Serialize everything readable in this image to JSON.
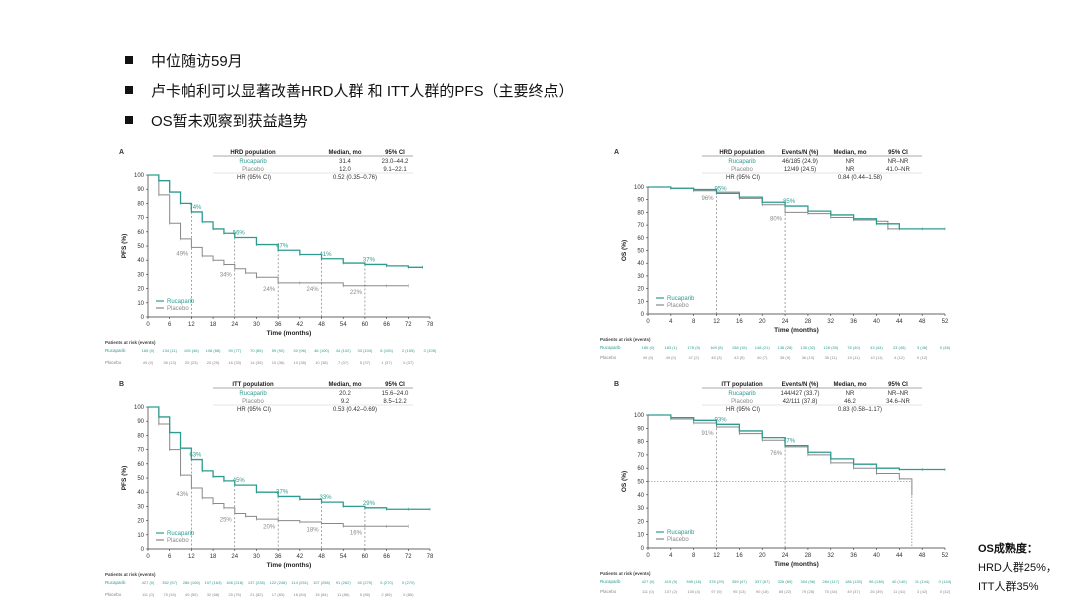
{
  "bullets": [
    "中位随访59月",
    "卢卡帕利可以显著改善HRD人群 和 ITT人群的PFS（主要终点）",
    "OS暂未观察到获益趋势"
  ],
  "maturity": {
    "title": "OS成熟度：",
    "lines": [
      "HRD人群25%，",
      "ITT人群35%"
    ]
  },
  "colors": {
    "treatment": "#2e9b8f",
    "placebo": "#888888"
  },
  "chart_data": [
    {
      "id": "pfs_hrd",
      "panel_label": "A",
      "type": "line",
      "ylabel": "PFS (%)",
      "xlabel": "Time (months)",
      "xlim": [
        0,
        78
      ],
      "ylim": [
        0,
        100
      ],
      "xticks": [
        0,
        6,
        12,
        18,
        24,
        30,
        36,
        42,
        48,
        54,
        60,
        66,
        72,
        78
      ],
      "yticks": [
        0,
        10,
        20,
        30,
        40,
        50,
        60,
        70,
        80,
        90,
        100
      ],
      "table": {
        "headers": [
          "HRD population",
          "Median, mo",
          "95% CI"
        ],
        "rows": [
          [
            "Rucaparib",
            "31.4",
            "23.0–44.2"
          ],
          [
            "Placebo",
            "12.0",
            "9.1–22.1"
          ]
        ],
        "hr_label": "HR (95% CI)",
        "hr_value": "0.52 (0.35–0.76)"
      },
      "legend": [
        "Rucaparib",
        "Placebo"
      ],
      "series": [
        {
          "name": "Rucaparib",
          "x": [
            0,
            3,
            6,
            9,
            12,
            15,
            18,
            21,
            24,
            30,
            36,
            42,
            48,
            54,
            60,
            66,
            72,
            76
          ],
          "y": [
            100,
            96,
            88,
            80,
            74,
            67,
            62,
            59,
            56,
            51,
            47,
            44,
            41,
            38,
            37,
            36,
            35,
            35
          ]
        },
        {
          "name": "Placebo",
          "x": [
            0,
            3,
            6,
            9,
            12,
            15,
            18,
            21,
            24,
            27,
            30,
            36,
            42,
            48,
            54,
            60,
            66,
            72
          ],
          "y": [
            100,
            86,
            66,
            55,
            49,
            43,
            40,
            37,
            34,
            31,
            28,
            24,
            24,
            24,
            22,
            22,
            22,
            22
          ]
        }
      ],
      "annotations": [
        {
          "x": 12,
          "y": 74,
          "text": "74%",
          "series": "Rucaparib"
        },
        {
          "x": 24,
          "y": 56,
          "text": "56%",
          "series": "Rucaparib"
        },
        {
          "x": 36,
          "y": 47,
          "text": "47%",
          "series": "Rucaparib"
        },
        {
          "x": 48,
          "y": 41,
          "text": "41%",
          "series": "Rucaparib"
        },
        {
          "x": 60,
          "y": 37,
          "text": "37%",
          "series": "Rucaparib"
        },
        {
          "x": 12,
          "y": 49,
          "text": "49%",
          "series": "Placebo"
        },
        {
          "x": 24,
          "y": 34,
          "text": "34%",
          "series": "Placebo"
        },
        {
          "x": 36,
          "y": 24,
          "text": "24%",
          "series": "Placebo"
        },
        {
          "x": 48,
          "y": 24,
          "text": "24%",
          "series": "Placebo"
        },
        {
          "x": 60,
          "y": 22,
          "text": "22%",
          "series": "Placebo"
        }
      ],
      "dashed_x": [
        12,
        24,
        36,
        48,
        60
      ],
      "risk_title": "Patients at risk (events)",
      "risk_rows": [
        {
          "name": "Rucaparib",
          "values": [
            "185 (0)",
            "134 (11)",
            "105 (46)",
            "108 (68)",
            "90 (77)",
            "70 (85)",
            "59 (92)",
            "52 (96)",
            "46 (100)",
            "44 (102)",
            "33 (104)",
            "8 (105)",
            "2 (105)",
            "0 (105)"
          ]
        },
        {
          "name": "Placebo",
          "values": [
            "49 (0)",
            "36 (13)",
            "25 (23)",
            "20 (29)",
            "16 (33)",
            "14 (35)",
            "10 (36)",
            "10 (38)",
            "10 (38)",
            "7 (37)",
            "5 (37)",
            "1 (37)",
            "0 (37)",
            ""
          ]
        }
      ]
    },
    {
      "id": "os_hrd",
      "panel_label": "A",
      "type": "line",
      "ylabel": "OS (%)",
      "xlabel": "Time (months)",
      "xlim": [
        0,
        52
      ],
      "ylim": [
        0,
        100
      ],
      "xticks": [
        0,
        4,
        8,
        12,
        16,
        20,
        24,
        28,
        32,
        36,
        40,
        44,
        48,
        52
      ],
      "yticks": [
        0,
        10,
        20,
        30,
        40,
        50,
        60,
        70,
        80,
        90,
        100
      ],
      "table": {
        "headers": [
          "HRD population",
          "Events/N (%)",
          "Median, mo",
          "95% CI"
        ],
        "rows": [
          [
            "Rucaparib",
            "46/185 (24.9)",
            "NR",
            "NR–NR"
          ],
          [
            "Placebo",
            "12/49 (24.5)",
            "NR",
            "41.0–NR"
          ]
        ],
        "hr_label": "HR (95% CI)",
        "hr_value": "0.84 (0.44–1.58)"
      },
      "legend": [
        "Rucaparib",
        "Placebo"
      ],
      "series": [
        {
          "name": "Rucaparib",
          "x": [
            0,
            4,
            8,
            12,
            16,
            20,
            24,
            28,
            32,
            36,
            40,
            44,
            48,
            52
          ],
          "y": [
            100,
            99,
            98,
            95,
            92,
            88,
            85,
            81,
            78,
            75,
            71,
            67,
            67,
            67
          ]
        },
        {
          "name": "Placebo",
          "x": [
            0,
            4,
            8,
            12,
            16,
            20,
            24,
            28,
            32,
            36,
            40,
            42,
            44
          ],
          "y": [
            100,
            99,
            97,
            96,
            91,
            86,
            80,
            79,
            76,
            74,
            73,
            67,
            67
          ]
        }
      ],
      "annotations": [
        {
          "x": 12,
          "y": 95,
          "text": "95%",
          "series": "Rucaparib"
        },
        {
          "x": 24,
          "y": 85,
          "text": "85%",
          "series": "Rucaparib"
        },
        {
          "x": 12,
          "y": 96,
          "text": "96%",
          "series": "Placebo"
        },
        {
          "x": 24,
          "y": 80,
          "text": "80%",
          "series": "Placebo"
        }
      ],
      "dashed_x": [
        12,
        24
      ],
      "risk_title": "Patients at risk (events)",
      "risk_rows": [
        {
          "name": "Rucaparib",
          "values": [
            "185 (0)",
            "183 (1)",
            "178 (5)",
            "169 (8)",
            "158 (15)",
            "148 (21)",
            "136 (28)",
            "130 (32)",
            "126 (35)",
            "76 (40)",
            "43 (44)",
            "23 (45)",
            "3 (46)",
            "0 (46)"
          ]
        },
        {
          "name": "Placebo",
          "values": [
            "49 (0)",
            "49 (0)",
            "47 (2)",
            "45 (3)",
            "43 (5)",
            "40 (7)",
            "38 (9)",
            "36 (10)",
            "35 (11)",
            "19 (11)",
            "10 (11)",
            "4 (12)",
            "0 (12)",
            ""
          ]
        }
      ]
    },
    {
      "id": "pfs_itt",
      "panel_label": "B",
      "type": "line",
      "ylabel": "PFS (%)",
      "xlabel": "Time (months)",
      "xlim": [
        0,
        78
      ],
      "ylim": [
        0,
        100
      ],
      "xticks": [
        0,
        6,
        12,
        18,
        24,
        30,
        36,
        42,
        48,
        54,
        60,
        66,
        72,
        78
      ],
      "yticks": [
        0,
        10,
        20,
        30,
        40,
        50,
        60,
        70,
        80,
        90,
        100
      ],
      "table": {
        "headers": [
          "ITT population",
          "Median, mo",
          "95% CI"
        ],
        "rows": [
          [
            "Rucaparib",
            "20.2",
            "15.6–24.0"
          ],
          [
            "Placebo",
            "9.2",
            "8.5–12.2"
          ]
        ],
        "hr_label": "HR (95% CI)",
        "hr_value": "0.53 (0.42–0.69)"
      },
      "legend": [
        "Rucaparib",
        "Placebo"
      ],
      "series": [
        {
          "name": "Rucaparib",
          "x": [
            0,
            3,
            6,
            9,
            12,
            15,
            18,
            21,
            24,
            30,
            36,
            42,
            48,
            54,
            60,
            66,
            72,
            78
          ],
          "y": [
            100,
            93,
            82,
            71,
            63,
            55,
            51,
            48,
            45,
            40,
            37,
            35,
            33,
            30,
            29,
            28,
            28,
            28
          ]
        },
        {
          "name": "Placebo",
          "x": [
            0,
            3,
            6,
            9,
            12,
            15,
            18,
            21,
            24,
            27,
            30,
            36,
            42,
            48,
            54,
            60,
            66,
            72
          ],
          "y": [
            100,
            88,
            70,
            52,
            43,
            36,
            32,
            29,
            25,
            23,
            21,
            20,
            19,
            18,
            16,
            16,
            16,
            16
          ]
        }
      ],
      "annotations": [
        {
          "x": 12,
          "y": 63,
          "text": "63%",
          "series": "Rucaparib"
        },
        {
          "x": 24,
          "y": 45,
          "text": "45%",
          "series": "Rucaparib"
        },
        {
          "x": 36,
          "y": 37,
          "text": "37%",
          "series": "Rucaparib"
        },
        {
          "x": 48,
          "y": 33,
          "text": "33%",
          "series": "Rucaparib"
        },
        {
          "x": 60,
          "y": 29,
          "text": "29%",
          "series": "Rucaparib"
        },
        {
          "x": 12,
          "y": 43,
          "text": "43%",
          "series": "Placebo"
        },
        {
          "x": 24,
          "y": 25,
          "text": "25%",
          "series": "Placebo"
        },
        {
          "x": 36,
          "y": 20,
          "text": "20%",
          "series": "Placebo"
        },
        {
          "x": 48,
          "y": 18,
          "text": "18%",
          "series": "Placebo"
        },
        {
          "x": 60,
          "y": 16,
          "text": "16%",
          "series": "Placebo"
        }
      ],
      "dashed_x": [
        12,
        24,
        36,
        48,
        60
      ],
      "risk_title": "Patients at risk (events)",
      "risk_rows": [
        {
          "name": "Rucaparib",
          "values": [
            "427 (0)",
            "352 (57)",
            "286 (106)",
            "197 (163)",
            "166 (218)",
            "137 (236)",
            "122 (248)",
            "114 (251)",
            "107 (256)",
            "91 (262)",
            "40 (270)",
            "5 (270)",
            "0 (270)",
            ""
          ]
        },
        {
          "name": "Placebo",
          "values": [
            "111 (0)",
            "75 (34)",
            "49 (50)",
            "32 (68)",
            "25 (76)",
            "21 (82)",
            "17 (83)",
            "16 (84)",
            "15 (84)",
            "11 (86)",
            "5 (86)",
            "2 (86)",
            "0 (86)",
            ""
          ]
        }
      ]
    },
    {
      "id": "os_itt",
      "panel_label": "B",
      "type": "line",
      "ylabel": "OS (%)",
      "xlabel": "Time (months)",
      "xlim": [
        0,
        52
      ],
      "ylim": [
        0,
        100
      ],
      "xticks": [
        0,
        4,
        8,
        12,
        16,
        20,
        24,
        28,
        32,
        36,
        40,
        44,
        48,
        52
      ],
      "yticks": [
        0,
        10,
        20,
        30,
        40,
        50,
        60,
        70,
        80,
        90,
        100
      ],
      "table": {
        "headers": [
          "ITT population",
          "Events/N (%)",
          "Median, mo",
          "95% CI"
        ],
        "rows": [
          [
            "Rucaparib",
            "144/427 (33.7)",
            "NR",
            "NR–NR"
          ],
          [
            "Placebo",
            "42/111 (37.8)",
            "46.2",
            "34.6–NR"
          ]
        ],
        "hr_label": "HR (95% CI)",
        "hr_value": "0.83 (0.58–1.17)"
      },
      "legend": [
        "Rucaparib",
        "Placebo"
      ],
      "series": [
        {
          "name": "Rucaparib",
          "x": [
            0,
            4,
            8,
            12,
            16,
            20,
            24,
            28,
            32,
            36,
            40,
            44,
            48,
            52
          ],
          "y": [
            100,
            98,
            96,
            93,
            88,
            83,
            77,
            72,
            67,
            63,
            60,
            59,
            59,
            59
          ]
        },
        {
          "name": "Placebo",
          "x": [
            0,
            4,
            8,
            12,
            16,
            20,
            24,
            28,
            32,
            36,
            40,
            44,
            46.2,
            46.2
          ],
          "y": [
            100,
            97,
            94,
            91,
            86,
            81,
            76,
            70,
            64,
            60,
            56,
            52,
            50,
            40
          ]
        }
      ],
      "annotations": [
        {
          "x": 12,
          "y": 93,
          "text": "93%",
          "series": "Rucaparib"
        },
        {
          "x": 24,
          "y": 77,
          "text": "77%",
          "series": "Rucaparib"
        },
        {
          "x": 12,
          "y": 91,
          "text": "91%",
          "series": "Placebo"
        },
        {
          "x": 24,
          "y": 76,
          "text": "76%",
          "series": "Placebo"
        }
      ],
      "dashed_x": [
        12,
        24
      ],
      "median_line": {
        "y": 50,
        "x": 46.2
      },
      "risk_title": "Patients at risk (events)",
      "risk_rows": [
        {
          "name": "Rucaparib",
          "values": [
            "427 (0)",
            "419 (5)",
            "398 (16)",
            "376 (29)",
            "359 (47)",
            "337 (67)",
            "326 (80)",
            "304 (96)",
            "284 (117)",
            "186 (130)",
            "96 (138)",
            "40 (140)",
            "11 (144)",
            "0 (144)"
          ]
        },
        {
          "name": "Placebo",
          "values": [
            "111 (0)",
            "107 (2)",
            "105 (4)",
            "97 (9)",
            "95 (13)",
            "90 (18)",
            "85 (22)",
            "79 (28)",
            "75 (34)",
            "49 (37)",
            "26 (39)",
            "11 (41)",
            "3 (42)",
            "0 (42)"
          ]
        }
      ]
    }
  ]
}
